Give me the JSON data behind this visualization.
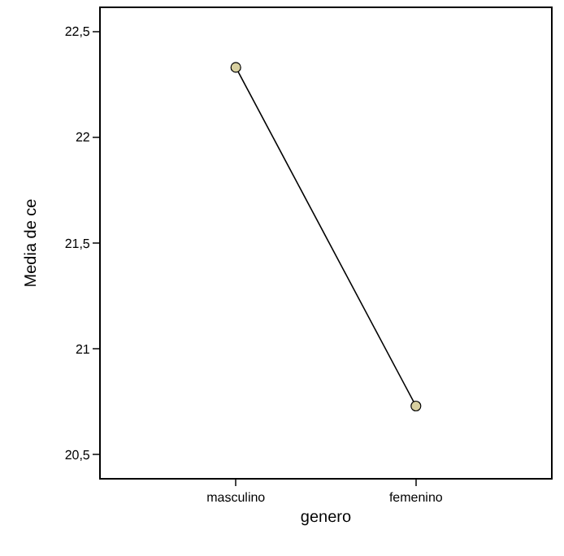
{
  "chart_data": {
    "type": "line",
    "xlabel": "genero",
    "ylabel": "Media de ce",
    "categories": [
      "masculino",
      "femenino"
    ],
    "series": [
      {
        "color": "#000000",
        "colors": [
          "#d8d0a0",
          "#d8d0a0"
        ],
        "values": [
          22.33,
          20.73
        ]
      }
    ],
    "marker": "circle",
    "ylim": [
      20.39,
      22.61
    ],
    "yticks": [
      {
        "value": 20.5,
        "label": "20,5"
      },
      21,
      {
        "value": 21.5,
        "label": "21,5"
      },
      22,
      {
        "value": 22.5,
        "label": "22,5"
      }
    ]
  }
}
